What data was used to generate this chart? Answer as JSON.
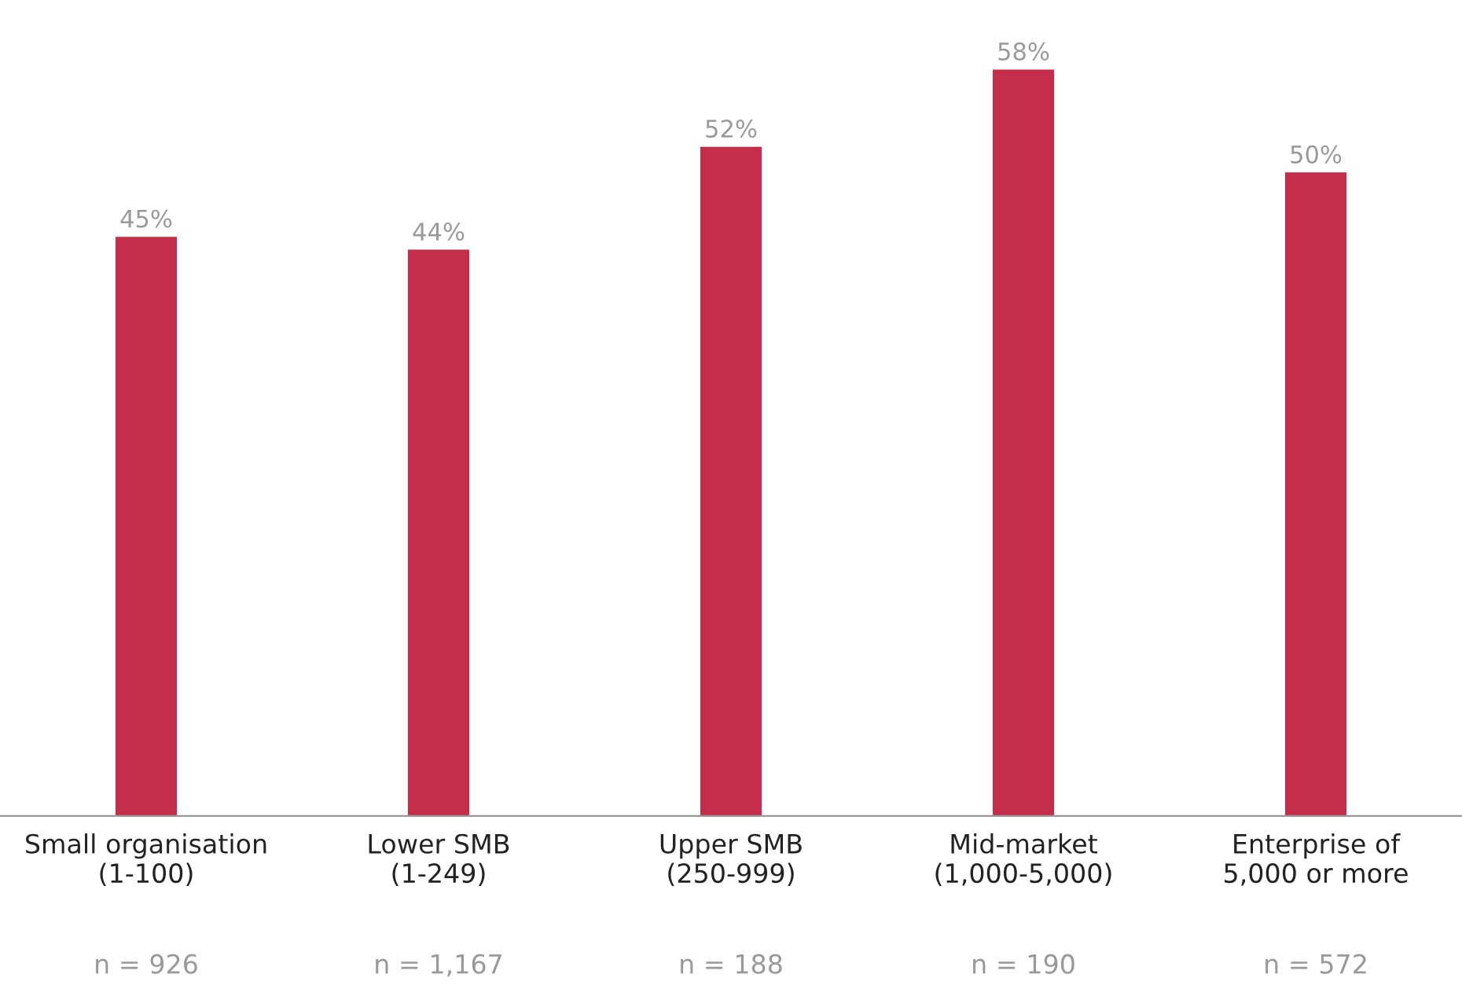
{
  "chart_data": {
    "type": "bar",
    "categories": [
      "Small organisation\n(1-100)",
      "Lower SMB\n(1-249)",
      "Upper SMB\n(250-999)",
      "Mid-market\n(1,000-5,000)",
      "Enterprise of\n5,000 or more"
    ],
    "values": [
      45,
      44,
      52,
      58,
      50
    ],
    "value_labels": [
      "45%",
      "44%",
      "52%",
      "58%",
      "50%"
    ],
    "color": "#c42e4a",
    "annotations": [
      "n = 926",
      "n = 1,167",
      "n = 188",
      "n = 190",
      "n = 572"
    ],
    "grid": false,
    "legend": false
  }
}
